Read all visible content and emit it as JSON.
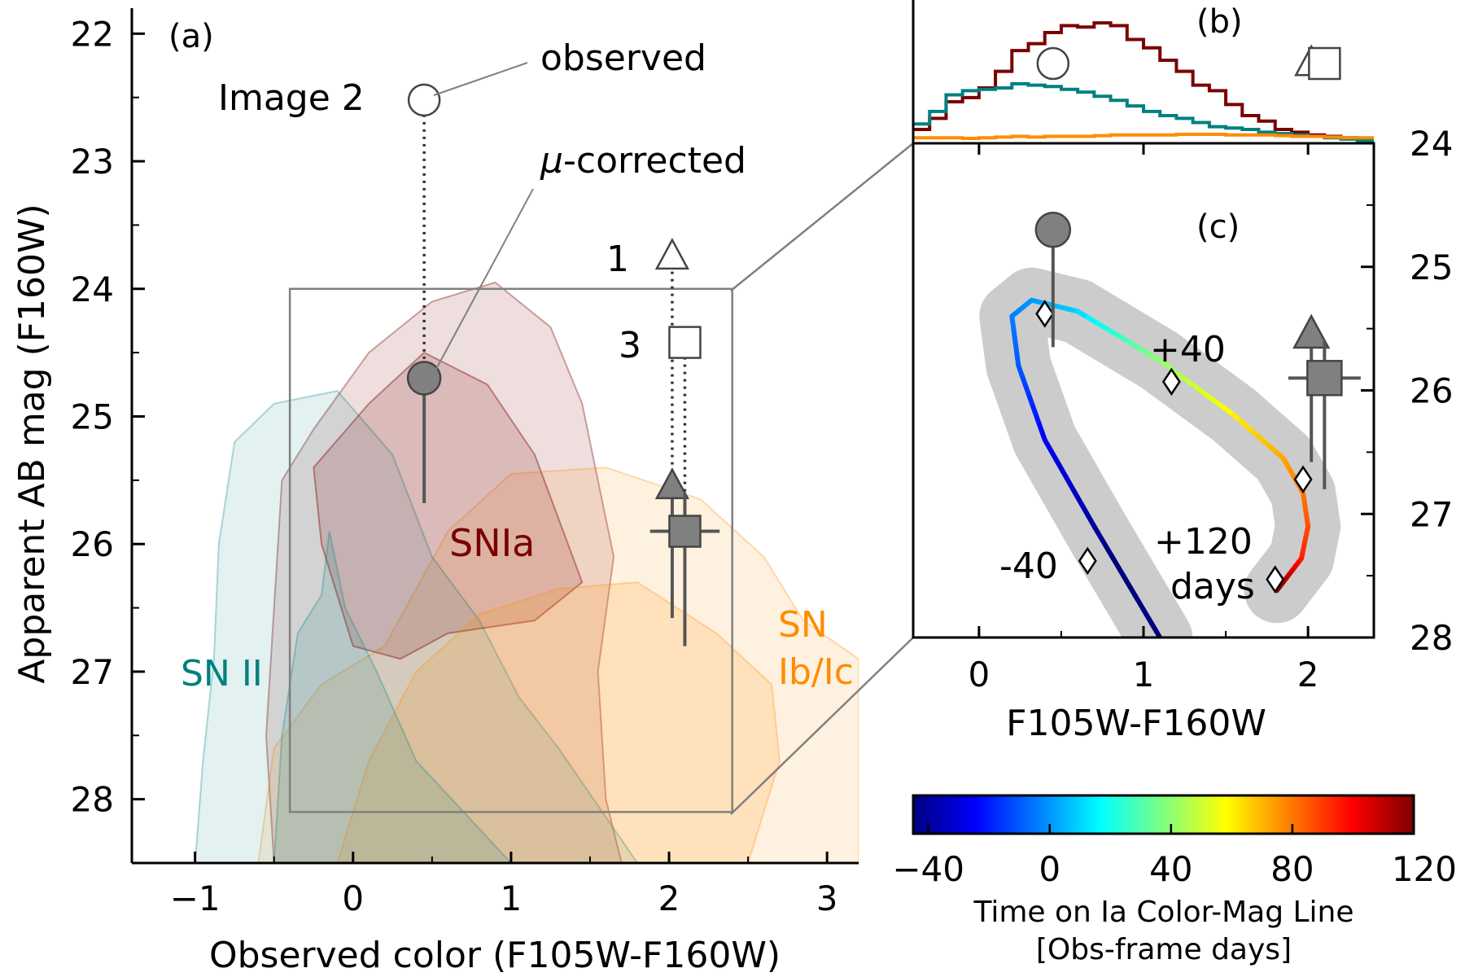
{
  "chart_data": [
    {
      "type": "scatter",
      "panel_label": "(a)",
      "xlabel": "Observed color (F105W-F160W)",
      "ylabel": "Apparent AB mag (F160W)",
      "xlim": [
        -1.4,
        3.2
      ],
      "ylim": [
        28.5,
        21.8
      ],
      "xticks": [
        -1,
        0,
        1,
        2,
        3
      ],
      "xtick_labels": [
        "−1",
        "0",
        "1",
        "2",
        "3"
      ],
      "yticks": [
        22,
        23,
        24,
        25,
        26,
        27,
        28
      ],
      "ytick_labels": [
        "22",
        "23",
        "24",
        "25",
        "26",
        "27",
        "28"
      ],
      "zoom_box": {
        "x0": -0.4,
        "x1": 2.4,
        "y0": 24.0,
        "y1": 28.1
      },
      "annotations": {
        "observed": "observed",
        "mu_corrected_prefix": "μ",
        "mu_corrected_suffix": "-corrected",
        "image2": "Image 2",
        "image1": "1",
        "image3": "3",
        "snia": "SNIa",
        "snii": "SN II",
        "snibc_1": "SN",
        "snibc_2": "Ib/Ic"
      },
      "colors": {
        "snia": "#7a0000",
        "snii": "#008080",
        "snibc": "#ff8c00",
        "marker": "#666666"
      },
      "observed_points": [
        {
          "image": "2",
          "marker": "circle",
          "x": 0.45,
          "y": 22.52
        },
        {
          "image": "1",
          "marker": "triangle",
          "x": 2.02,
          "y": 23.75
        },
        {
          "image": "3",
          "marker": "square",
          "x": 2.1,
          "y": 24.42
        }
      ],
      "corrected_points": [
        {
          "image": "2",
          "marker": "circle",
          "x": 0.45,
          "y": 24.7,
          "y_lo": 24.6,
          "y_hi": 25.68
        },
        {
          "image": "1",
          "marker": "triangle",
          "x": 2.02,
          "y": 25.55,
          "y_lo": 25.5,
          "y_hi": 26.58,
          "xerr": 0.0
        },
        {
          "image": "3",
          "marker": "square",
          "x": 2.1,
          "y": 25.9,
          "y_lo": 25.6,
          "y_hi": 26.8,
          "xerr": 0.22
        }
      ],
      "contours": {
        "snia_outer": [
          [
            -0.5,
            28.5
          ],
          [
            -0.55,
            27.5
          ],
          [
            -0.5,
            26.5
          ],
          [
            -0.45,
            25.5
          ],
          [
            -0.25,
            25.1
          ],
          [
            0.1,
            24.5
          ],
          [
            0.5,
            24.1
          ],
          [
            0.9,
            23.95
          ],
          [
            1.25,
            24.3
          ],
          [
            1.45,
            24.9
          ],
          [
            1.55,
            25.5
          ],
          [
            1.65,
            26.1
          ],
          [
            1.55,
            27.0
          ],
          [
            1.6,
            28.0
          ],
          [
            1.7,
            28.5
          ]
        ],
        "snia_inner": [
          [
            -0.2,
            26.0
          ],
          [
            -0.25,
            25.4
          ],
          [
            0.1,
            24.9
          ],
          [
            0.45,
            24.5
          ],
          [
            0.85,
            24.75
          ],
          [
            1.15,
            25.3
          ],
          [
            1.3,
            25.8
          ],
          [
            1.45,
            26.3
          ],
          [
            1.15,
            26.6
          ],
          [
            0.6,
            26.7
          ],
          [
            0.3,
            26.9
          ],
          [
            0.0,
            26.8
          ]
        ],
        "snii_outer": [
          [
            -1.0,
            28.5
          ],
          [
            -0.95,
            27.7
          ],
          [
            -0.88,
            26.9
          ],
          [
            -0.85,
            26.0
          ],
          [
            -0.75,
            25.2
          ],
          [
            -0.5,
            24.9
          ],
          [
            -0.1,
            24.8
          ],
          [
            0.25,
            25.3
          ],
          [
            0.5,
            26.1
          ],
          [
            0.8,
            26.6
          ],
          [
            1.05,
            27.2
          ],
          [
            1.3,
            27.6
          ],
          [
            1.8,
            28.5
          ]
        ],
        "snii_inner": [
          [
            -0.5,
            28.5
          ],
          [
            -0.45,
            27.5
          ],
          [
            -0.35,
            26.7
          ],
          [
            -0.2,
            26.4
          ],
          [
            -0.15,
            25.9
          ],
          [
            -0.05,
            26.5
          ],
          [
            0.15,
            27.0
          ],
          [
            0.4,
            27.7
          ],
          [
            1.0,
            28.5
          ]
        ],
        "snibc_outer": [
          [
            -0.6,
            28.5
          ],
          [
            -0.5,
            27.6
          ],
          [
            -0.2,
            27.1
          ],
          [
            0.2,
            26.8
          ],
          [
            0.6,
            25.9
          ],
          [
            1.0,
            25.45
          ],
          [
            1.6,
            25.4
          ],
          [
            2.2,
            25.65
          ],
          [
            2.6,
            26.1
          ],
          [
            2.85,
            26.6
          ],
          [
            3.2,
            26.9
          ],
          [
            3.2,
            28.5
          ]
        ],
        "snibc_inner": [
          [
            -0.1,
            28.5
          ],
          [
            0.1,
            27.7
          ],
          [
            0.4,
            27.0
          ],
          [
            0.8,
            26.55
          ],
          [
            1.3,
            26.35
          ],
          [
            1.8,
            26.3
          ],
          [
            2.3,
            26.7
          ],
          [
            2.65,
            27.1
          ],
          [
            2.7,
            27.7
          ],
          [
            2.5,
            28.5
          ]
        ]
      }
    },
    {
      "type": "line",
      "panel_label": "(b)",
      "description_series": [
        "SNIa",
        "SN II",
        "SN Ib/Ic"
      ],
      "xlim": [
        -0.4,
        2.4
      ],
      "x_edges": [
        -0.4,
        -0.3,
        -0.2,
        -0.1,
        0.0,
        0.1,
        0.2,
        0.3,
        0.4,
        0.5,
        0.6,
        0.7,
        0.8,
        0.9,
        1.0,
        1.1,
        1.2,
        1.3,
        1.4,
        1.5,
        1.6,
        1.7,
        1.8,
        1.9,
        2.0,
        2.1,
        2.2,
        2.3,
        2.4
      ],
      "series": [
        {
          "key": "snia",
          "values": [
            0.1,
            0.18,
            0.3,
            0.33,
            0.4,
            0.52,
            0.67,
            0.72,
            0.8,
            0.85,
            0.84,
            0.87,
            0.85,
            0.75,
            0.69,
            0.6,
            0.52,
            0.42,
            0.38,
            0.28,
            0.2,
            0.16,
            0.1,
            0.08,
            0.06,
            0.05,
            0.04,
            0.03
          ]
        },
        {
          "key": "snii",
          "values": [
            0.14,
            0.23,
            0.35,
            0.38,
            0.39,
            0.4,
            0.43,
            0.42,
            0.41,
            0.39,
            0.37,
            0.34,
            0.31,
            0.27,
            0.23,
            0.2,
            0.18,
            0.15,
            0.12,
            0.11,
            0.1,
            0.08,
            0.07,
            0.06,
            0.05,
            0.04,
            0.03,
            0.02
          ]
        },
        {
          "key": "snibc",
          "values": [
            0.04,
            0.04,
            0.04,
            0.035,
            0.04,
            0.045,
            0.05,
            0.045,
            0.05,
            0.05,
            0.05,
            0.055,
            0.06,
            0.06,
            0.06,
            0.06,
            0.065,
            0.065,
            0.065,
            0.06,
            0.06,
            0.06,
            0.055,
            0.05,
            0.05,
            0.045,
            0.04,
            0.04
          ]
        }
      ],
      "marker_positions": [
        {
          "marker": "circle",
          "x": 0.45
        },
        {
          "marker": "triangle",
          "x": 2.02
        },
        {
          "marker": "square",
          "x": 2.1
        }
      ]
    },
    {
      "type": "line",
      "panel_label": "(c)",
      "xlabel": "F105W-F160W",
      "xlim": [
        -0.4,
        2.4
      ],
      "ylim": [
        28.0,
        24.0
      ],
      "xticks": [
        0,
        1,
        2
      ],
      "xtick_labels": [
        "0",
        "1",
        "2"
      ],
      "yticks": [
        24,
        25,
        26,
        27,
        28
      ],
      "ytick_labels": [
        "24",
        "25",
        "26",
        "27",
        "28"
      ],
      "annotations": {
        "t_m40": "-40",
        "t_p40": "+40",
        "t_p120_1": "+120",
        "t_p120_2": "days"
      },
      "track": [
        [
          1.1,
          28.0
        ],
        [
          0.7,
          27.1
        ],
        [
          0.4,
          26.4
        ],
        [
          0.24,
          25.8
        ],
        [
          0.2,
          25.4
        ],
        [
          0.32,
          25.27
        ],
        [
          0.6,
          25.36
        ],
        [
          1.1,
          25.76
        ],
        [
          1.55,
          26.2
        ],
        [
          1.85,
          26.55
        ],
        [
          1.97,
          26.83
        ],
        [
          2.0,
          27.1
        ],
        [
          1.96,
          27.36
        ],
        [
          1.81,
          27.62
        ]
      ],
      "track_times": [
        -62,
        -40,
        -26,
        -10,
        -4,
        0,
        10,
        40,
        60,
        72,
        80,
        86,
        94,
        120
      ],
      "diamonds": [
        [
          0.4,
          25.38
        ],
        [
          1.17,
          25.93
        ],
        [
          1.97,
          26.72
        ],
        [
          0.66,
          27.38
        ],
        [
          1.8,
          27.53
        ]
      ],
      "corrected_points": [
        {
          "image": "2",
          "marker": "circle",
          "x": 0.45,
          "y": 24.7,
          "y_lo": 24.7,
          "y_hi": 25.65
        },
        {
          "image": "1",
          "marker": "triangle",
          "x": 2.02,
          "y": 25.55,
          "y_lo": 25.5,
          "y_hi": 26.58
        },
        {
          "image": "3",
          "marker": "square",
          "x": 2.1,
          "y": 25.9,
          "y_lo": 25.6,
          "y_hi": 26.8,
          "xerr": 0.22
        }
      ]
    },
    {
      "type": "heatmap",
      "label_line1": "Time on Ia Color-Mag Line",
      "label_line2": "[Obs-frame days]",
      "range": [
        -45,
        120
      ],
      "ticks": [
        -40,
        0,
        40,
        80,
        120
      ],
      "tick_labels": [
        "−40",
        "0",
        "40",
        "80",
        "120"
      ],
      "colormap": [
        "#00007f",
        "#0000ff",
        "#007fff",
        "#00ffff",
        "#7fff7f",
        "#ffff00",
        "#ff7f00",
        "#ff0000",
        "#7f0000"
      ]
    }
  ]
}
